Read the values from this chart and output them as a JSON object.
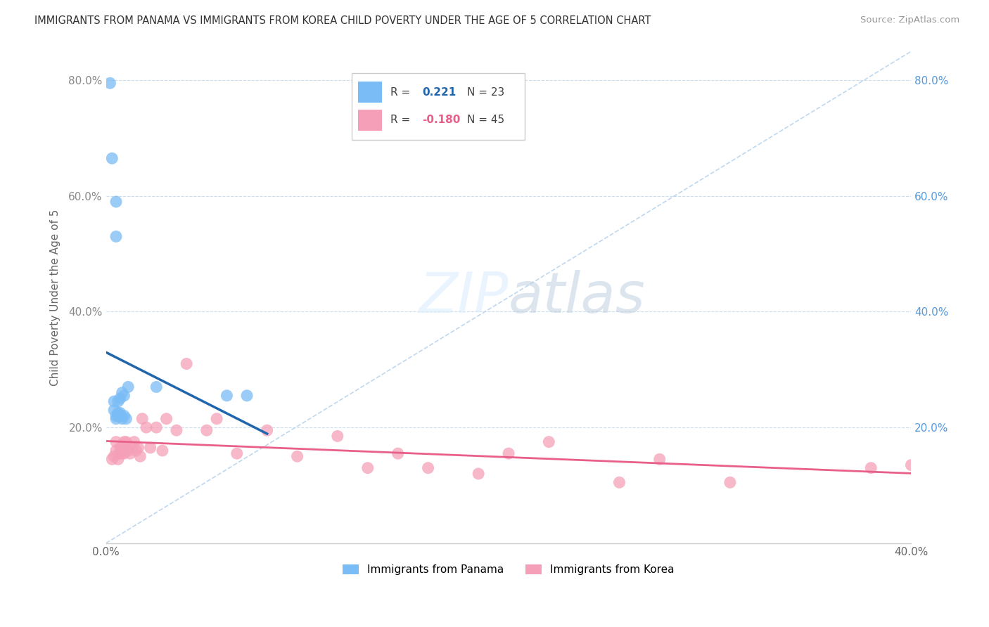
{
  "title": "IMMIGRANTS FROM PANAMA VS IMMIGRANTS FROM KOREA CHILD POVERTY UNDER THE AGE OF 5 CORRELATION CHART",
  "source": "Source: ZipAtlas.com",
  "ylabel": "Child Poverty Under the Age of 5",
  "xlim": [
    0.0,
    0.4
  ],
  "ylim": [
    0.0,
    0.85
  ],
  "legend_r_panama": "0.221",
  "legend_n_panama": "23",
  "legend_r_korea": "-0.180",
  "legend_n_korea": "45",
  "panama_color": "#7abcf5",
  "korea_color": "#f5a0b8",
  "panama_line_color": "#2166ac",
  "korea_line_color": "#e8608a",
  "diag_color": "#b8d4ee",
  "watermark_color": "#ddeeff",
  "panama_x": [
    0.002,
    0.003,
    0.004,
    0.004,
    0.005,
    0.005,
    0.005,
    0.005,
    0.006,
    0.006,
    0.006,
    0.007,
    0.007,
    0.007,
    0.008,
    0.008,
    0.009,
    0.009,
    0.01,
    0.011,
    0.025,
    0.06,
    0.07
  ],
  "panama_y": [
    0.795,
    0.665,
    0.245,
    0.23,
    0.215,
    0.22,
    0.59,
    0.53,
    0.225,
    0.22,
    0.245,
    0.22,
    0.225,
    0.25,
    0.215,
    0.26,
    0.22,
    0.255,
    0.215,
    0.27,
    0.27,
    0.255,
    0.255
  ],
  "korea_x": [
    0.003,
    0.004,
    0.005,
    0.005,
    0.006,
    0.007,
    0.007,
    0.008,
    0.008,
    0.009,
    0.009,
    0.01,
    0.01,
    0.011,
    0.012,
    0.013,
    0.014,
    0.015,
    0.016,
    0.017,
    0.018,
    0.02,
    0.022,
    0.025,
    0.028,
    0.03,
    0.035,
    0.04,
    0.05,
    0.055,
    0.065,
    0.08,
    0.095,
    0.115,
    0.13,
    0.145,
    0.16,
    0.185,
    0.2,
    0.22,
    0.255,
    0.275,
    0.31,
    0.38,
    0.4
  ],
  "korea_y": [
    0.145,
    0.15,
    0.16,
    0.175,
    0.145,
    0.155,
    0.165,
    0.155,
    0.165,
    0.155,
    0.175,
    0.16,
    0.175,
    0.16,
    0.155,
    0.165,
    0.175,
    0.16,
    0.165,
    0.15,
    0.215,
    0.2,
    0.165,
    0.2,
    0.16,
    0.215,
    0.195,
    0.31,
    0.195,
    0.215,
    0.155,
    0.195,
    0.15,
    0.185,
    0.13,
    0.155,
    0.13,
    0.12,
    0.155,
    0.175,
    0.105,
    0.145,
    0.105,
    0.13,
    0.135
  ]
}
